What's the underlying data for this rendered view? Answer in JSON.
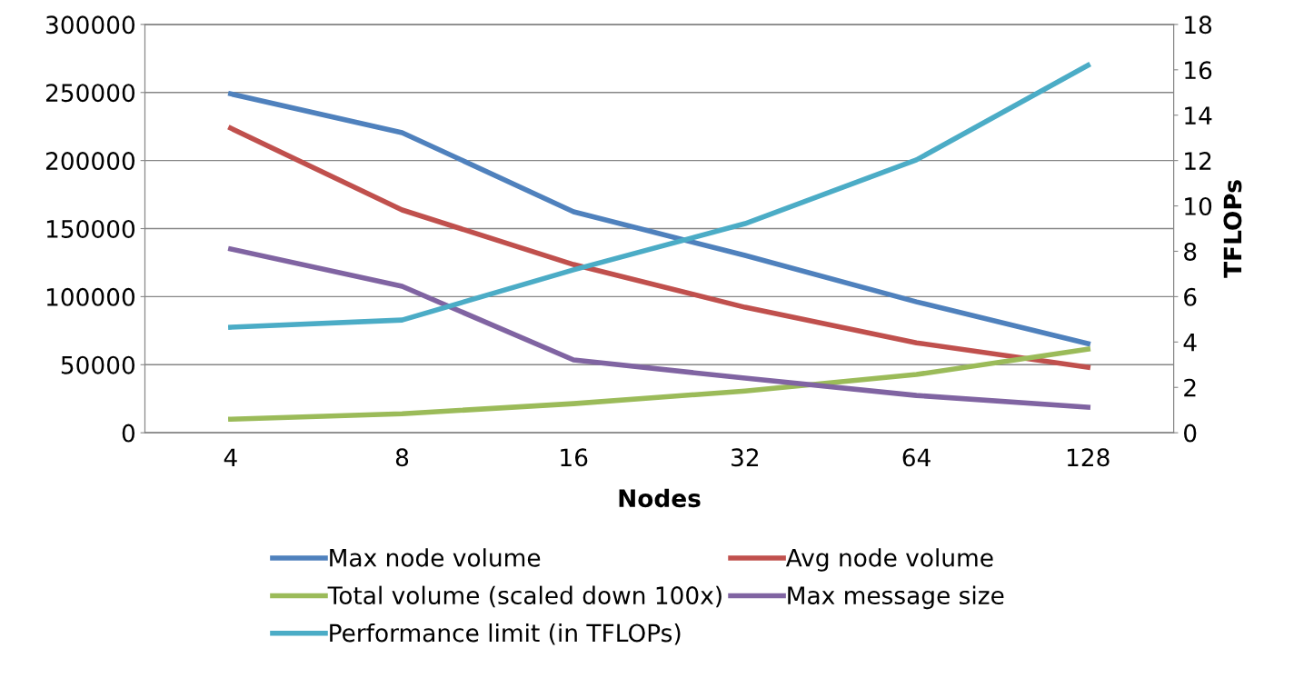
{
  "chart_data": {
    "type": "line",
    "xlabel": "Nodes",
    "y2label": "TFLOPs",
    "categories": [
      "4",
      "8",
      "16",
      "32",
      "64",
      "128"
    ],
    "ylim": [
      0,
      300000
    ],
    "yticks": [
      0,
      50000,
      100000,
      150000,
      200000,
      250000,
      300000
    ],
    "y2lim": [
      0,
      18
    ],
    "y2ticks": [
      0,
      2,
      4,
      6,
      8,
      10,
      12,
      14,
      16,
      18
    ],
    "grid": "y",
    "legend": "bottom",
    "marker": "none",
    "line_style": "solid",
    "series": [
      {
        "name": "Max node volume",
        "color": "#4f81bd",
        "values": [
          249000,
          220500,
          162400,
          130300,
          96200,
          65500
        ]
      },
      {
        "name": "Avg node volume",
        "color": "#c0504d",
        "values": [
          223800,
          163700,
          123600,
          92200,
          66100,
          48100
        ]
      },
      {
        "name": "Total volume (scaled down 100x)",
        "color": "#9bbb59",
        "values": [
          10000,
          14000,
          21400,
          30700,
          42800,
          61500
        ]
      },
      {
        "name": "Max message size",
        "color": "#8064a2",
        "values": [
          135000,
          107600,
          53500,
          40100,
          27400,
          18700
        ]
      },
      {
        "name": "Performance limit (in TFLOPs)",
        "color": "#4bacc6",
        "axis": "y2",
        "values": [
          4.65,
          4.97,
          7.18,
          9.22,
          12.03,
          16.2
        ]
      }
    ]
  }
}
